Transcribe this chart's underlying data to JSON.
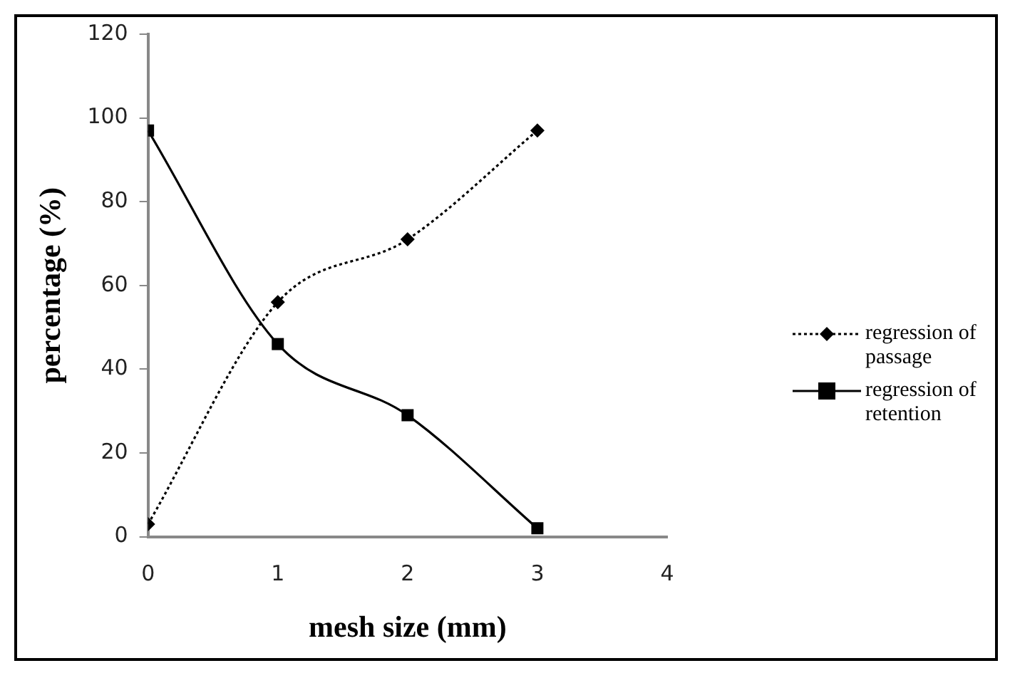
{
  "chart_data": {
    "type": "line",
    "xlabel": "mesh size (mm)",
    "ylabel": "percentage (%)",
    "x": [
      0,
      1,
      2,
      3
    ],
    "series": [
      {
        "name": "regression of passage",
        "color": "#000000",
        "values": [
          3,
          56,
          71,
          97
        ],
        "marker": "diamond",
        "line_style": "dotted"
      },
      {
        "name": "regression of retention",
        "color": "#000000",
        "values": [
          97,
          46,
          29,
          2
        ],
        "marker": "square",
        "line_style": "solid"
      }
    ],
    "xlim": [
      0,
      4
    ],
    "xticks": [
      0,
      1,
      2,
      3,
      4
    ],
    "ylim": [
      0,
      120
    ],
    "yticks": [
      0,
      20,
      40,
      60,
      80,
      100,
      120
    ],
    "grid": false,
    "legend": "right"
  }
}
